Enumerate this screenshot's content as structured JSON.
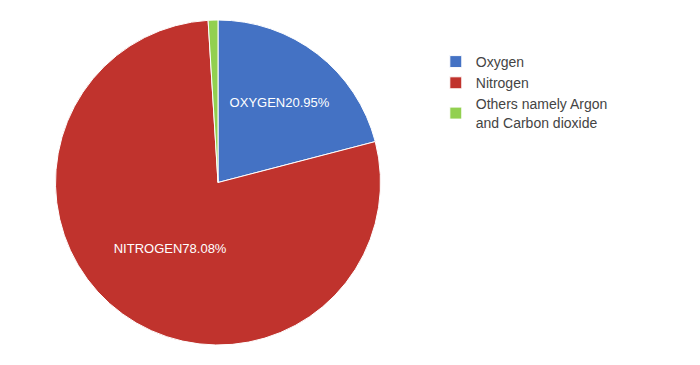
{
  "chart_data": {
    "type": "pie",
    "categories": [
      "Oxygen",
      "Nitrogen",
      "Others namely Argon\nand Carbon dioxide"
    ],
    "values": [
      20.95,
      78.08,
      0.97
    ],
    "colors": [
      "#4472C4",
      "#C0332D",
      "#92D050"
    ],
    "data_labels": true,
    "value_labels": [
      "OXYGEN20.95%",
      "NITROGEN78.08%",
      null
    ],
    "legend": "right"
  }
}
